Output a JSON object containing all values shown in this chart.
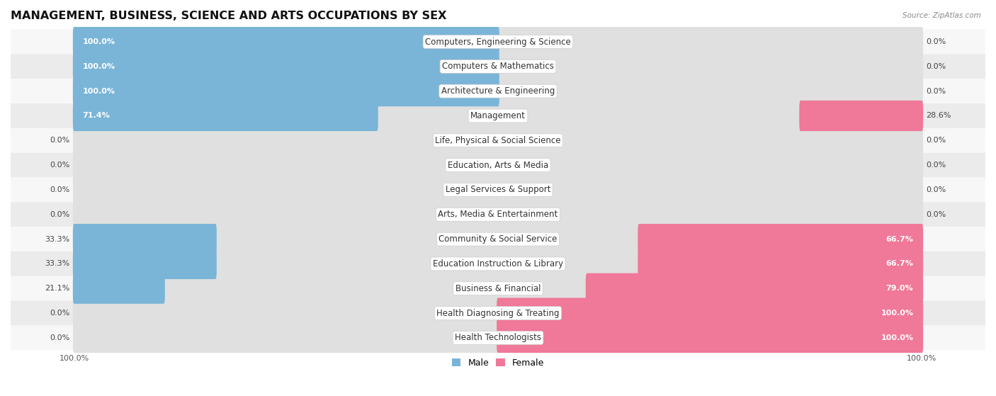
{
  "title": "MANAGEMENT, BUSINESS, SCIENCE AND ARTS OCCUPATIONS BY SEX",
  "source": "Source: ZipAtlas.com",
  "categories": [
    "Computers, Engineering & Science",
    "Computers & Mathematics",
    "Architecture & Engineering",
    "Management",
    "Life, Physical & Social Science",
    "Education, Arts & Media",
    "Legal Services & Support",
    "Arts, Media & Entertainment",
    "Community & Social Service",
    "Education Instruction & Library",
    "Business & Financial",
    "Health Diagnosing & Treating",
    "Health Technologists"
  ],
  "male": [
    100.0,
    100.0,
    100.0,
    71.4,
    0.0,
    0.0,
    0.0,
    0.0,
    33.3,
    33.3,
    21.1,
    0.0,
    0.0
  ],
  "female": [
    0.0,
    0.0,
    0.0,
    28.6,
    0.0,
    0.0,
    0.0,
    0.0,
    66.7,
    66.7,
    79.0,
    100.0,
    100.0
  ],
  "male_color": "#7ab5d8",
  "female_color": "#f07898",
  "row_bg_even": "#f7f7f7",
  "row_bg_odd": "#ebebeb",
  "bar_track_color": "#e0e0e0",
  "legend_male": "Male",
  "legend_female": "Female",
  "title_fontsize": 11.5,
  "label_fontsize": 8.5,
  "pct_fontsize": 8.0
}
